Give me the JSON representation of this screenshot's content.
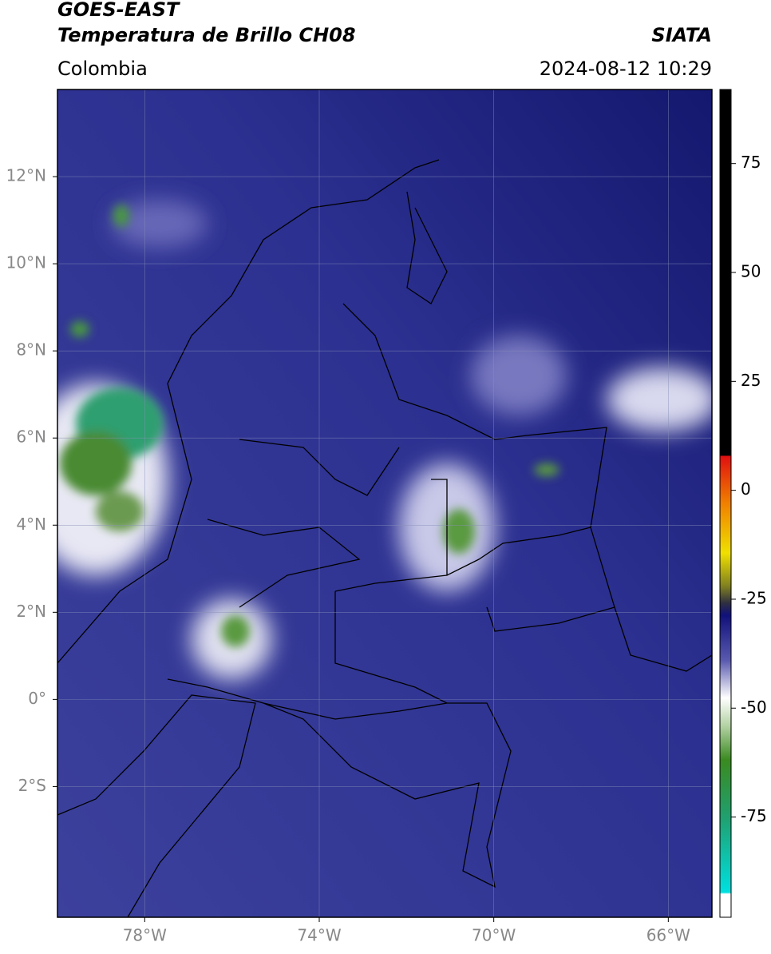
{
  "header": {
    "satellite": "GOES-EAST",
    "product": "Temperatura de Brillo CH08",
    "source": "SIATA",
    "region": "Colombia",
    "datetime": "2024-08-12 10:29"
  },
  "map": {
    "xlim": [
      -80,
      -65
    ],
    "ylim": [
      -5,
      14
    ],
    "grid": true,
    "xticks": [
      {
        "value": -78,
        "label": "78°W"
      },
      {
        "value": -74,
        "label": "74°W"
      },
      {
        "value": -70,
        "label": "70°W"
      },
      {
        "value": -66,
        "label": "66°W"
      }
    ],
    "yticks": [
      {
        "value": 12,
        "label": "12°N"
      },
      {
        "value": 10,
        "label": "10°N"
      },
      {
        "value": 8,
        "label": "8°N"
      },
      {
        "value": 6,
        "label": "6°N"
      },
      {
        "value": 4,
        "label": "4°N"
      },
      {
        "value": 2,
        "label": "2°N"
      },
      {
        "value": 0,
        "label": "0°"
      },
      {
        "value": -2,
        "label": "2°S"
      }
    ]
  },
  "colorbar": {
    "ylim": [
      -98,
      92
    ],
    "yticks": [
      75,
      50,
      25,
      0,
      -25,
      -50,
      -75
    ]
  }
}
